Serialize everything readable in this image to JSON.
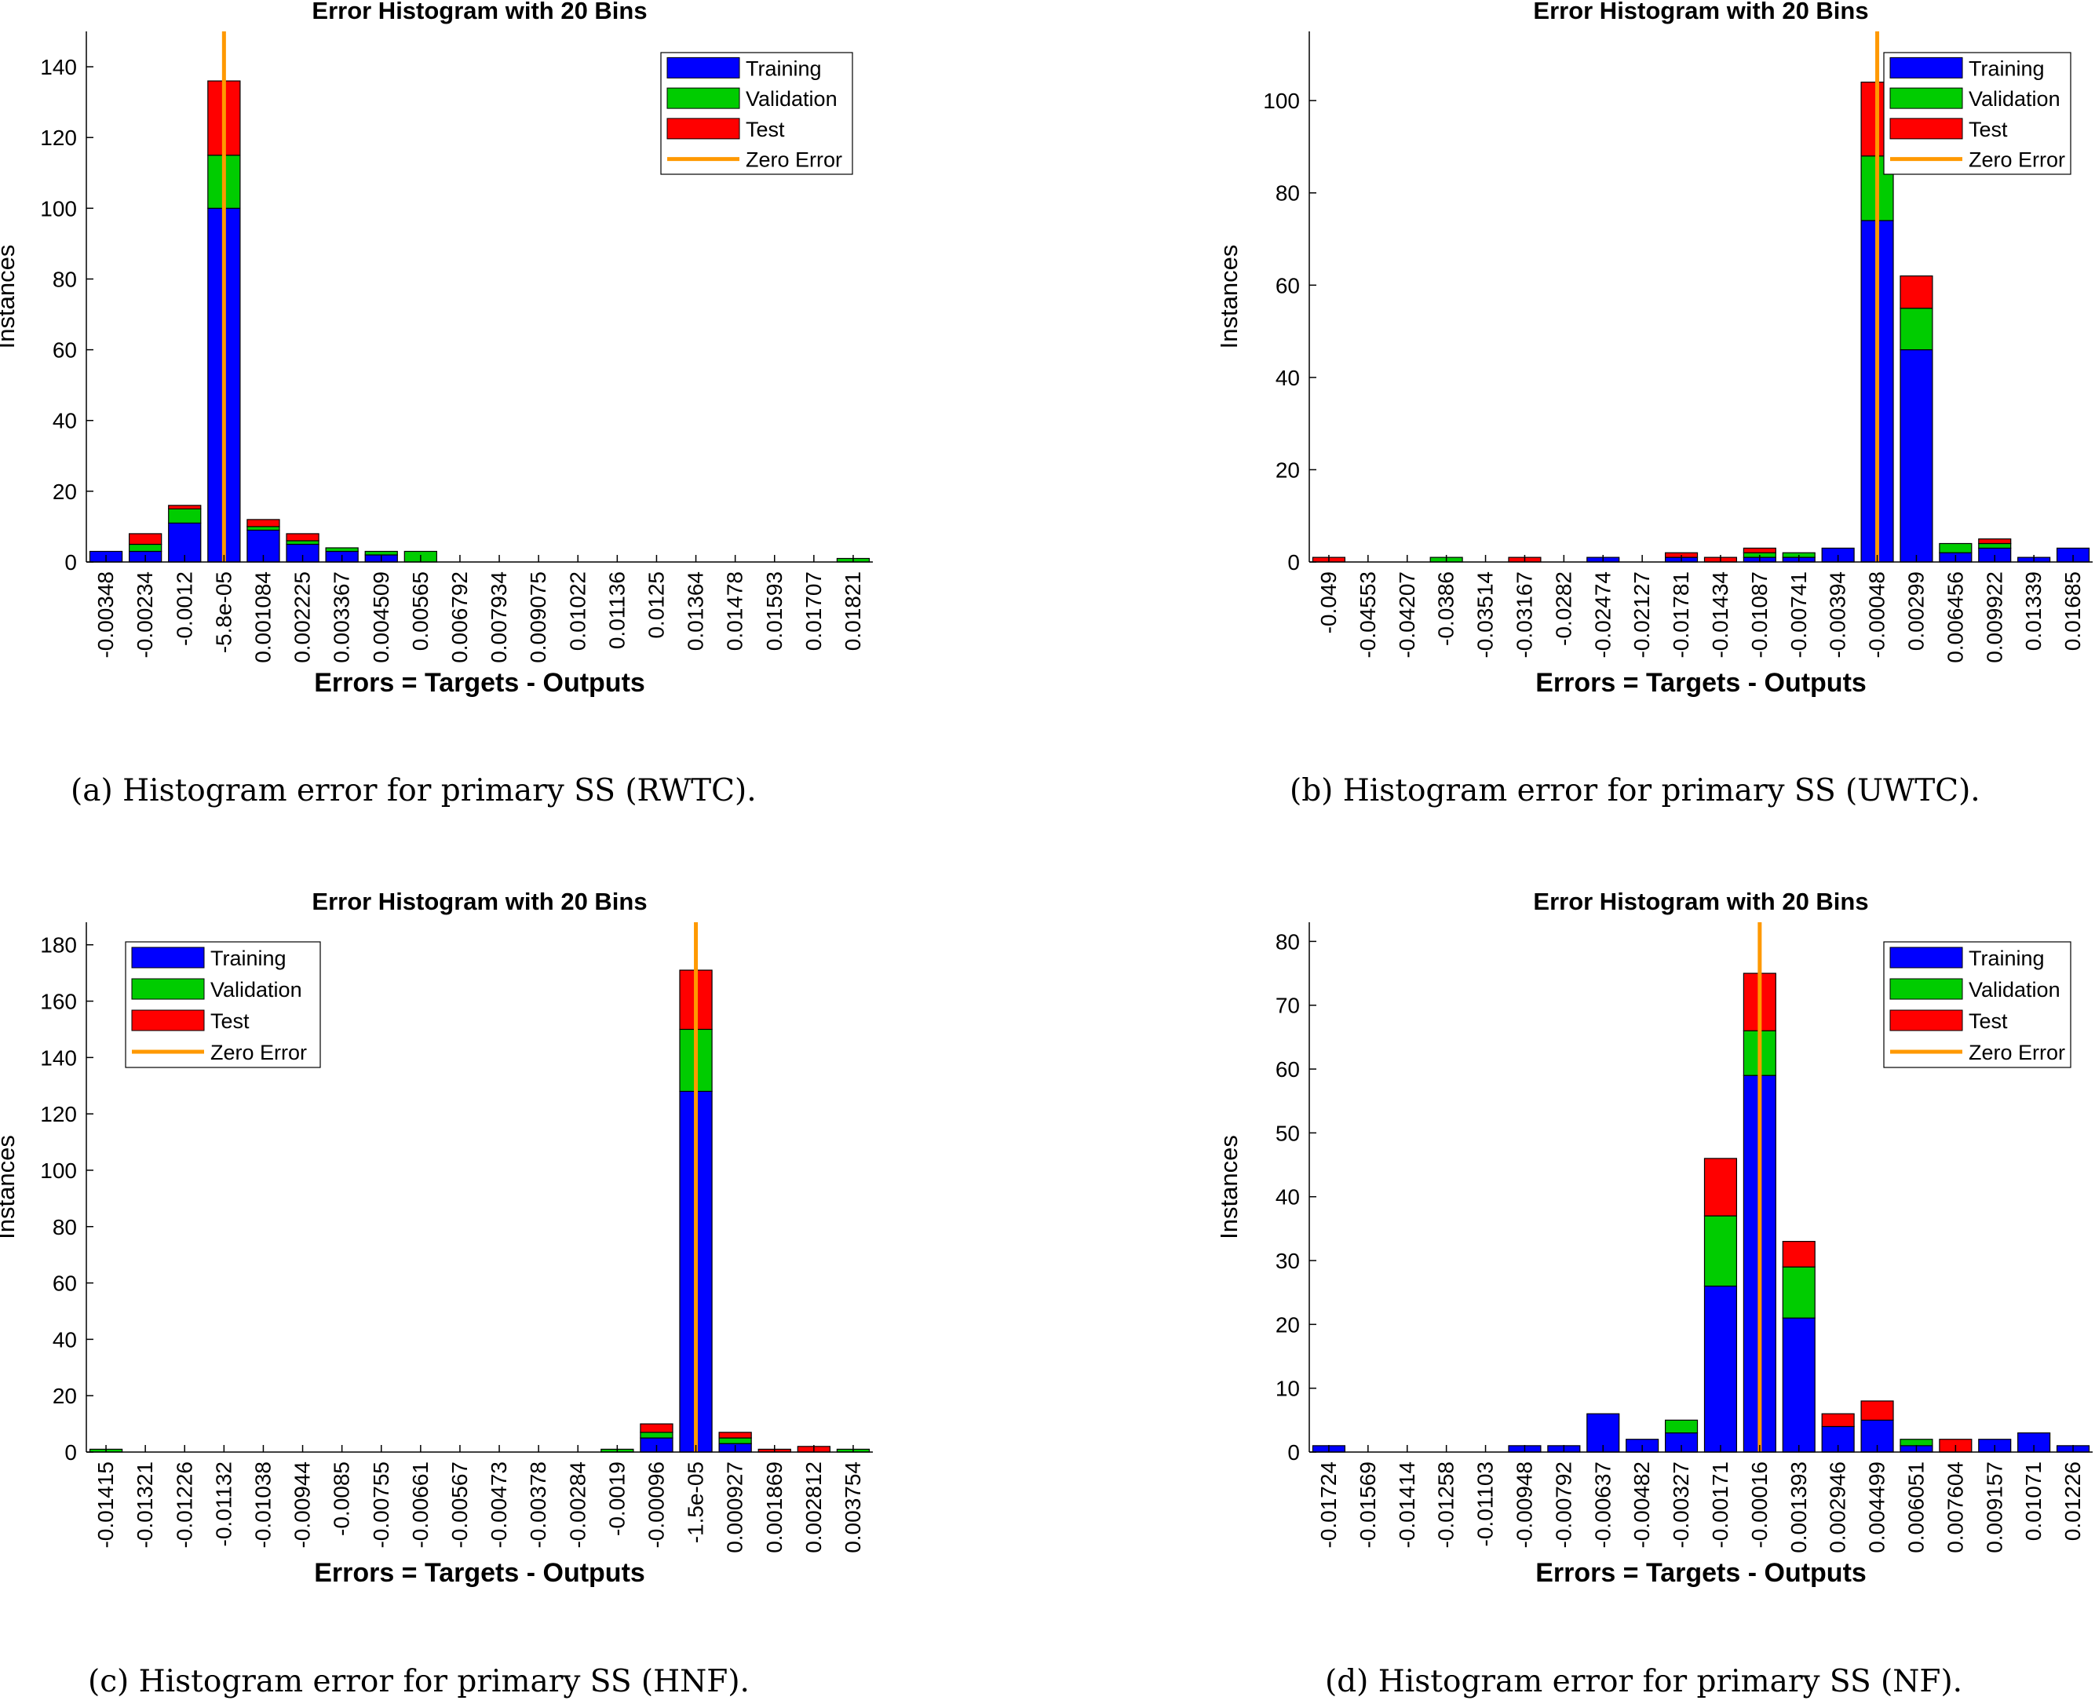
{
  "legend_labels": [
    "Training",
    "Validation",
    "Test",
    "Zero Error"
  ],
  "colors": {
    "training": "#0000ff",
    "validation": "#00cc00",
    "test": "#ff0000",
    "zero_error": "#ff9900",
    "bar_edge": "#000000"
  },
  "captions": [
    "(a) Histogram error for primary SS (RWTC).",
    "(b) Histogram error for primary SS (UWTC).",
    "(c) Histogram error for primary SS (HNF).",
    "(d) Histogram error for primary SS (NF)."
  ],
  "chart_data": [
    {
      "type": "bar",
      "stacked": true,
      "title": "Error Histogram with 20 Bins",
      "xlabel": "Errors = Targets - Outputs",
      "ylabel": "Instances",
      "ylim": [
        0,
        150
      ],
      "yticks": [
        0,
        20,
        40,
        60,
        80,
        100,
        120,
        140
      ],
      "zero_error_bin": 3,
      "legend_position": "top-right",
      "categories": [
        "-0.00348",
        "-0.00234",
        "-0.0012",
        "-5.8e-05",
        "0.001084",
        "0.002225",
        "0.003367",
        "0.004509",
        "0.00565",
        "0.006792",
        "0.007934",
        "0.009075",
        "0.01022",
        "0.01136",
        "0.0125",
        "0.01364",
        "0.01478",
        "0.01593",
        "0.01707",
        "0.01821"
      ],
      "series": [
        {
          "name": "Training",
          "values": [
            3,
            3,
            11,
            100,
            9,
            5,
            3,
            2,
            0,
            0,
            0,
            0,
            0,
            0,
            0,
            0,
            0,
            0,
            0,
            0
          ]
        },
        {
          "name": "Validation",
          "values": [
            0,
            2,
            4,
            15,
            1,
            1,
            1,
            1,
            3,
            0,
            0,
            0,
            0,
            0,
            0,
            0,
            0,
            0,
            0,
            1
          ]
        },
        {
          "name": "Test",
          "values": [
            0,
            3,
            1,
            21,
            2,
            2,
            0,
            0,
            0,
            0,
            0,
            0,
            0,
            0,
            0,
            0,
            0,
            0,
            0,
            0
          ]
        }
      ]
    },
    {
      "type": "bar",
      "stacked": true,
      "title": "Error Histogram with 20 Bins",
      "xlabel": "Errors = Targets - Outputs",
      "ylabel": "Instances",
      "ylim": [
        0,
        115
      ],
      "yticks": [
        0,
        20,
        40,
        60,
        80,
        100
      ],
      "zero_error_bin": 14,
      "legend_position": "top-right",
      "categories": [
        "-0.049",
        "-0.04553",
        "-0.04207",
        "-0.0386",
        "-0.03514",
        "-0.03167",
        "-0.0282",
        "-0.02474",
        "-0.02127",
        "-0.01781",
        "-0.01434",
        "-0.01087",
        "-0.00741",
        "-0.00394",
        "-0.00048",
        "0.00299",
        "0.006456",
        "0.009922",
        "0.01339",
        "0.01685"
      ],
      "series": [
        {
          "name": "Training",
          "values": [
            0,
            0,
            0,
            0,
            0,
            0,
            0,
            1,
            0,
            1,
            0,
            1,
            1,
            3,
            74,
            46,
            2,
            3,
            1,
            3
          ]
        },
        {
          "name": "Validation",
          "values": [
            0,
            0,
            0,
            1,
            0,
            0,
            0,
            0,
            0,
            0,
            0,
            1,
            1,
            0,
            14,
            9,
            2,
            1,
            0,
            0
          ]
        },
        {
          "name": "Test",
          "values": [
            1,
            0,
            0,
            0,
            0,
            1,
            0,
            0,
            0,
            1,
            1,
            1,
            0,
            0,
            16,
            7,
            0,
            1,
            0,
            0
          ]
        }
      ]
    },
    {
      "type": "bar",
      "stacked": true,
      "title": "Error Histogram with 20 Bins",
      "xlabel": "Errors = Targets - Outputs",
      "ylabel": "Instances",
      "ylim": [
        0,
        188
      ],
      "yticks": [
        0,
        20,
        40,
        60,
        80,
        100,
        120,
        140,
        160,
        180
      ],
      "zero_error_bin": 15,
      "legend_position": "top-left",
      "categories": [
        "-0.01415",
        "-0.01321",
        "-0.01226",
        "-0.01132",
        "-0.01038",
        "-0.00944",
        "-0.0085",
        "-0.00755",
        "-0.00661",
        "-0.00567",
        "-0.00473",
        "-0.00378",
        "-0.00284",
        "-0.0019",
        "-0.00096",
        "-1.5e-05",
        "0.000927",
        "0.001869",
        "0.002812",
        "0.003754"
      ],
      "series": [
        {
          "name": "Training",
          "values": [
            0,
            0,
            0,
            0,
            0,
            0,
            0,
            0,
            0,
            0,
            0,
            0,
            0,
            0,
            5,
            128,
            3,
            0,
            0,
            0
          ]
        },
        {
          "name": "Validation",
          "values": [
            1,
            0,
            0,
            0,
            0,
            0,
            0,
            0,
            0,
            0,
            0,
            0,
            0,
            1,
            2,
            22,
            2,
            0,
            0,
            1
          ]
        },
        {
          "name": "Test",
          "values": [
            0,
            0,
            0,
            0,
            0,
            0,
            0,
            0,
            0,
            0,
            0,
            0,
            0,
            0,
            3,
            21,
            2,
            1,
            2,
            0
          ]
        }
      ]
    },
    {
      "type": "bar",
      "stacked": true,
      "title": "Error Histogram with 20 Bins",
      "xlabel": "Errors = Targets - Outputs",
      "ylabel": "Instances",
      "ylim": [
        0,
        83
      ],
      "yticks": [
        0,
        10,
        20,
        30,
        40,
        50,
        60,
        70,
        80
      ],
      "zero_error_bin": 11,
      "legend_position": "top-right",
      "categories": [
        "-0.01724",
        "-0.01569",
        "-0.01414",
        "-0.01258",
        "-0.01103",
        "-0.00948",
        "-0.00792",
        "-0.00637",
        "-0.00482",
        "-0.00327",
        "-0.00171",
        "-0.00016",
        "0.001393",
        "0.002946",
        "0.004499",
        "0.006051",
        "0.007604",
        "0.009157",
        "0.01071",
        "0.01226"
      ],
      "series": [
        {
          "name": "Training",
          "values": [
            1,
            0,
            0,
            0,
            0,
            1,
            1,
            6,
            2,
            3,
            26,
            59,
            21,
            4,
            5,
            1,
            0,
            2,
            3,
            1
          ]
        },
        {
          "name": "Validation",
          "values": [
            0,
            0,
            0,
            0,
            0,
            0,
            0,
            0,
            0,
            2,
            11,
            7,
            8,
            0,
            0,
            1,
            0,
            0,
            0,
            0
          ]
        },
        {
          "name": "Test",
          "values": [
            0,
            0,
            0,
            0,
            0,
            0,
            0,
            0,
            0,
            0,
            9,
            9,
            4,
            2,
            3,
            0,
            2,
            0,
            0,
            0
          ]
        }
      ]
    }
  ]
}
